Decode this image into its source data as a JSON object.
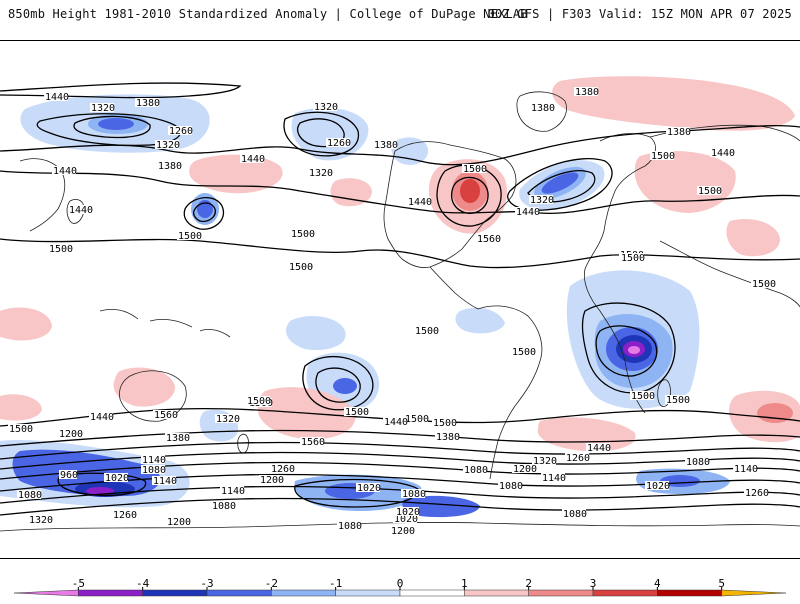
{
  "header": {
    "title_left": "850mb Height 1981-2010 Standardized Anomaly | College of DuPage NEXLAB",
    "title_right": "00Z GFS | F303 Valid: 15Z MON APR 07 2025"
  },
  "legend": {
    "ticks": [
      "-5",
      "-4",
      "-3",
      "-2",
      "-1",
      "0",
      "1",
      "2",
      "3",
      "4",
      "5"
    ],
    "colors": [
      "#e77ae6",
      "#8c20c8",
      "#1f35b8",
      "#4a66e4",
      "#8fb4f4",
      "#c8dcfa",
      "#ffffff",
      "#f8c6c6",
      "#ee8a8a",
      "#d94040",
      "#b30000",
      "#f3b400"
    ]
  },
  "contour_labels": [
    "1440",
    "1320",
    "1380",
    "1260",
    "1320",
    "1320",
    "1260",
    "1380",
    "1380",
    "1320",
    "1440",
    "1380",
    "1440",
    "1500",
    "1500",
    "1380",
    "1380",
    "1440",
    "1500",
    "1500",
    "1440",
    "1500",
    "1440",
    "1500",
    "1500",
    "1320",
    "1440",
    "1560",
    "1500",
    "1500",
    "1500",
    "1500",
    "1500",
    "1500",
    "1500",
    "1500",
    "1500",
    "1500",
    "1500",
    "1560",
    "1440",
    "1500",
    "1320",
    "1500",
    "1200",
    "1380",
    "1560",
    "1440",
    "1380",
    "1500",
    "1440",
    "1320",
    "1260",
    "1200",
    "1140",
    "1080",
    "1260",
    "1200",
    "1140",
    "1080",
    "960",
    "1020",
    "1140",
    "1080",
    "1140",
    "1080",
    "1020",
    "1080",
    "1020",
    "1080",
    "1020",
    "1080",
    "1140",
    "1260",
    "1080",
    "1320",
    "1260",
    "1200",
    "1080",
    "1200",
    "1020",
    "1500"
  ]
}
